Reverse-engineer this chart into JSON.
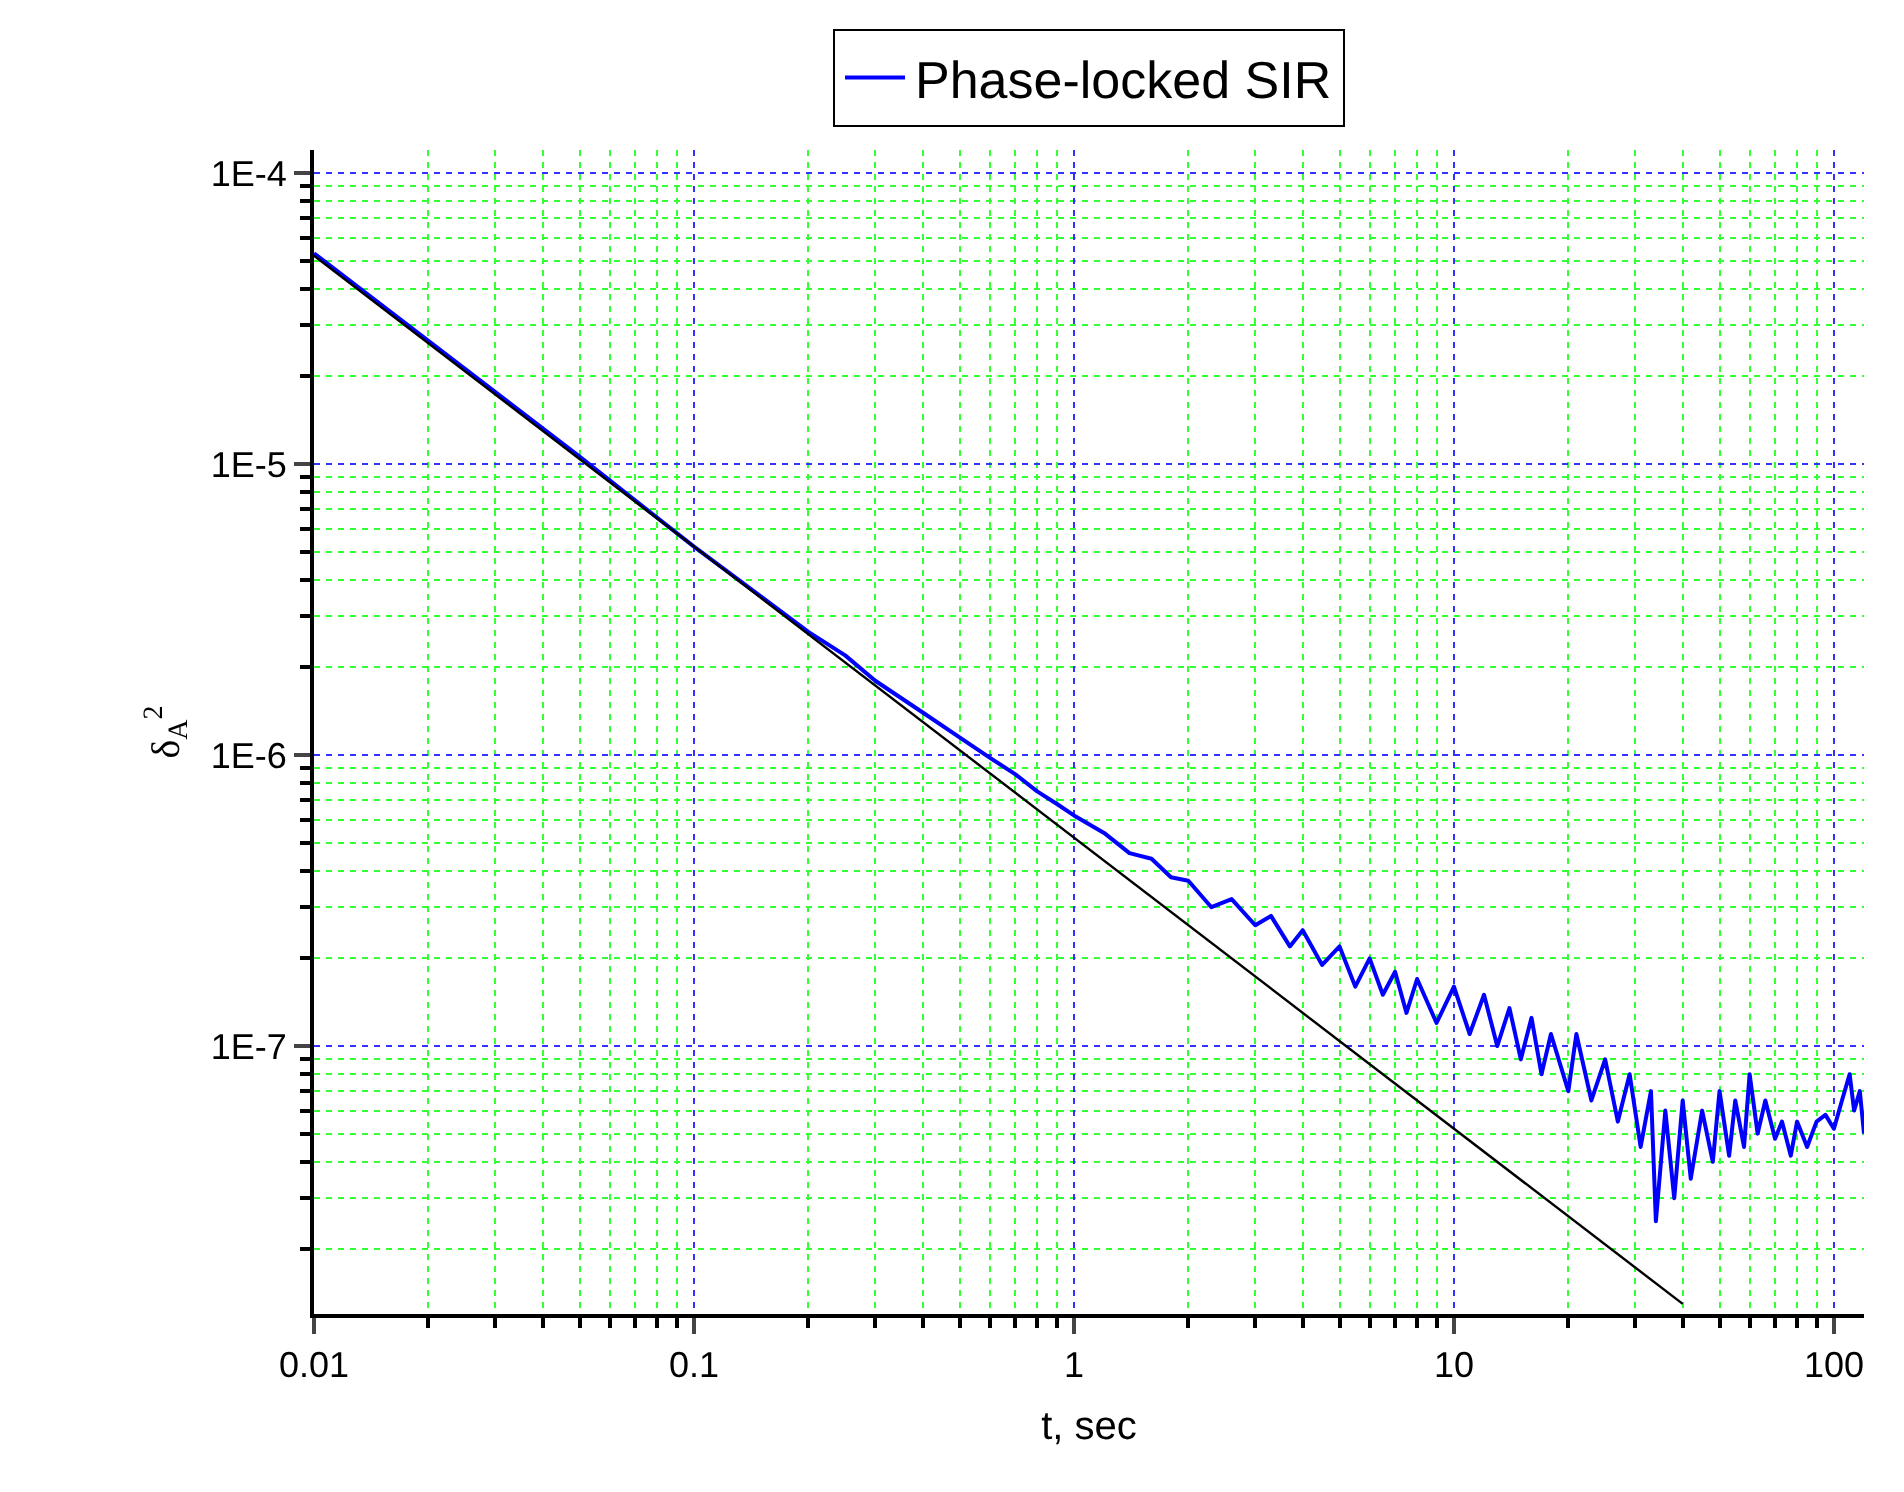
{
  "chart_data": {
    "type": "line",
    "xlabel": "t, sec",
    "ylabel": "δ$_{A}$$^{2}$",
    "log": "xy",
    "grid": true,
    "legend": "top",
    "marker": "none",
    "line_style": "solid",
    "xlim": [
      0.01,
      120
    ],
    "xticks": [
      0.01,
      {
        "value": 0.02,
        "label": null
      },
      {
        "value": 0.03,
        "label": null
      },
      {
        "value": 0.04,
        "label": null
      },
      {
        "value": 0.05,
        "label": null
      },
      {
        "value": 0.06,
        "label": null
      },
      {
        "value": 0.07,
        "label": null
      },
      {
        "value": 0.08,
        "label": null
      },
      {
        "value": 0.09,
        "label": null
      },
      0.1,
      {
        "value": 0.2,
        "label": null
      },
      {
        "value": 0.3,
        "label": null
      },
      {
        "value": 0.4,
        "label": null
      },
      {
        "value": 0.5,
        "label": null
      },
      {
        "value": 0.6,
        "label": null
      },
      {
        "value": 0.7,
        "label": null
      },
      {
        "value": 0.8,
        "label": null
      },
      {
        "value": 0.9,
        "label": null
      },
      1,
      {
        "value": 2,
        "label": null
      },
      {
        "value": 3,
        "label": null
      },
      {
        "value": 4,
        "label": null
      },
      {
        "value": 5,
        "label": null
      },
      {
        "value": 6,
        "label": null
      },
      {
        "value": 7,
        "label": null
      },
      {
        "value": 8,
        "label": null
      },
      {
        "value": 9,
        "label": null
      },
      10,
      {
        "value": 20,
        "label": null
      },
      {
        "value": 30,
        "label": null
      },
      {
        "value": 40,
        "label": null
      },
      {
        "value": 50,
        "label": null
      },
      {
        "value": 60,
        "label": null
      },
      {
        "value": 70,
        "label": null
      },
      {
        "value": 80,
        "label": null
      },
      {
        "value": 90,
        "label": null
      },
      100
    ],
    "ylim": [
      1.2e-08,
      0.00012
    ],
    "yticks": [
      {
        "value": 2e-08,
        "label": null
      },
      {
        "value": 3e-08,
        "label": null
      },
      {
        "value": 4e-08,
        "label": null
      },
      {
        "value": 5e-08,
        "label": null
      },
      {
        "value": 6e-08,
        "label": null
      },
      {
        "value": 7e-08,
        "label": null
      },
      {
        "value": 8e-08,
        "label": null
      },
      {
        "value": 9e-08,
        "label": null
      },
      {
        "value": 1e-07,
        "label": "1E-7"
      },
      {
        "value": 2e-07,
        "label": null
      },
      {
        "value": 3e-07,
        "label": null
      },
      {
        "value": 4e-07,
        "label": null
      },
      {
        "value": 5e-07,
        "label": null
      },
      {
        "value": 6e-07,
        "label": null
      },
      {
        "value": 7e-07,
        "label": null
      },
      {
        "value": 8e-07,
        "label": null
      },
      {
        "value": 9e-07,
        "label": null
      },
      {
        "value": 1e-06,
        "label": "1E-6"
      },
      {
        "value": 2e-06,
        "label": null
      },
      {
        "value": 3e-06,
        "label": null
      },
      {
        "value": 4e-06,
        "label": null
      },
      {
        "value": 5e-06,
        "label": null
      },
      {
        "value": 6e-06,
        "label": null
      },
      {
        "value": 7e-06,
        "label": null
      },
      {
        "value": 8e-06,
        "label": null
      },
      {
        "value": 9e-06,
        "label": null
      },
      {
        "value": 1e-05,
        "label": "1E-5"
      },
      {
        "value": 2e-05,
        "label": null
      },
      {
        "value": 3e-05,
        "label": null
      },
      {
        "value": 4e-05,
        "label": null
      },
      {
        "value": 5e-05,
        "label": null
      },
      {
        "value": 6e-05,
        "label": null
      },
      {
        "value": 7e-05,
        "label": null
      },
      {
        "value": 8e-05,
        "label": null
      },
      {
        "value": 9e-05,
        "label": null
      },
      {
        "value": 0.0001,
        "label": "1E-4"
      }
    ],
    "series": [
      {
        "name": "Phase-locked SIR",
        "color": "#0000ff",
        "x": [
          0.01,
          0.02,
          0.05,
          0.1,
          0.2,
          0.25,
          0.3,
          0.4,
          0.5,
          0.6,
          0.7,
          0.8,
          0.9,
          1.0,
          1.2,
          1.4,
          1.6,
          1.8,
          2,
          2.3,
          2.6,
          3,
          3.3,
          3.7,
          4,
          4.5,
          5,
          5.5,
          6,
          6.5,
          7,
          7.5,
          8,
          9,
          10,
          11,
          12,
          13,
          14,
          15,
          16,
          17,
          18,
          20,
          21,
          23,
          25,
          27,
          29,
          31,
          33,
          34,
          36,
          38,
          40,
          42,
          45,
          48,
          50,
          53,
          55,
          58,
          60,
          63,
          66,
          70,
          73,
          77,
          80,
          85,
          90,
          95,
          100,
          105,
          110,
          113,
          117,
          120
        ],
        "values": [
          5.3e-05,
          2.65e-05,
          1.06e-05,
          5.2e-06,
          2.65e-06,
          2.2e-06,
          1.8e-06,
          1.4e-06,
          1.15e-06,
          9.8e-07,
          8.6e-07,
          7.5e-07,
          6.8e-07,
          6.2e-07,
          5.4e-07,
          4.6e-07,
          4.4e-07,
          3.8e-07,
          3.7e-07,
          3e-07,
          3.2e-07,
          2.6e-07,
          2.8e-07,
          2.2e-07,
          2.5e-07,
          1.9e-07,
          2.2e-07,
          1.6e-07,
          2e-07,
          1.5e-07,
          1.8e-07,
          1.3e-07,
          1.7e-07,
          1.2e-07,
          1.6e-07,
          1.1e-07,
          1.5e-07,
          1e-07,
          1.35e-07,
          9e-08,
          1.25e-07,
          8e-08,
          1.1e-07,
          7e-08,
          1.1e-07,
          6.5e-08,
          9e-08,
          5.5e-08,
          8e-08,
          4.5e-08,
          7e-08,
          2.5e-08,
          6e-08,
          3e-08,
          6.5e-08,
          3.5e-08,
          6e-08,
          4e-08,
          7e-08,
          4.2e-08,
          6.5e-08,
          4.5e-08,
          8e-08,
          5e-08,
          6.5e-08,
          4.8e-08,
          5.5e-08,
          4.2e-08,
          5.5e-08,
          4.5e-08,
          5.5e-08,
          5.8e-08,
          5.2e-08,
          6.5e-08,
          8e-08,
          6e-08,
          7e-08,
          5e-08
        ]
      },
      {
        "type": "line",
        "color": "#000000",
        "x": [
          0.01,
          40
        ],
        "values": [
          5.2e-05,
          1.3e-08
        ]
      }
    ]
  }
}
